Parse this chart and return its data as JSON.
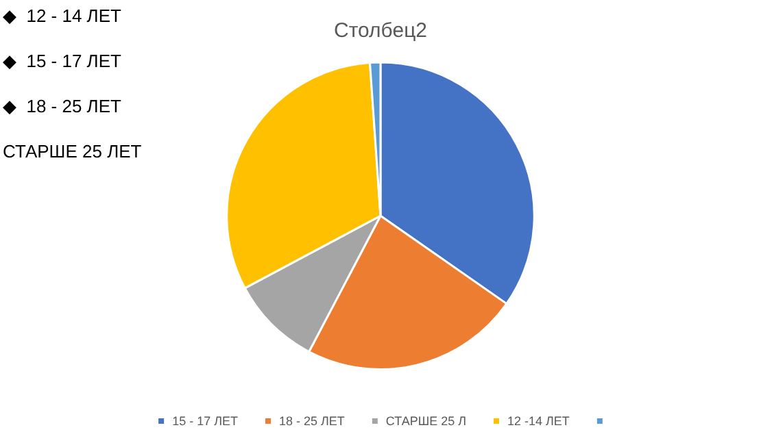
{
  "chart_data": {
    "type": "pie",
    "title": "Столбец2",
    "categories": [
      "15 - 17 ЛЕТ",
      "18 - 25 ЛЕТ",
      "СТАРШЕ 25 Л",
      "12 -14 ЛЕТ",
      null
    ],
    "values": [
      34.7,
      23,
      9.5,
      31.7,
      1.1
    ],
    "colors": [
      "#4472c4",
      "#ed7d31",
      "#a5a5a5",
      "#ffc000",
      "#5b9bd5"
    ],
    "legend": "bottom",
    "annotations": [
      "◆  12 - 14 ЛЕТ",
      "◆  15 - 17 ЛЕТ",
      "◆  18 - 25 ЛЕТ",
      "СТАРШЕ 25 ЛЕТ"
    ]
  }
}
